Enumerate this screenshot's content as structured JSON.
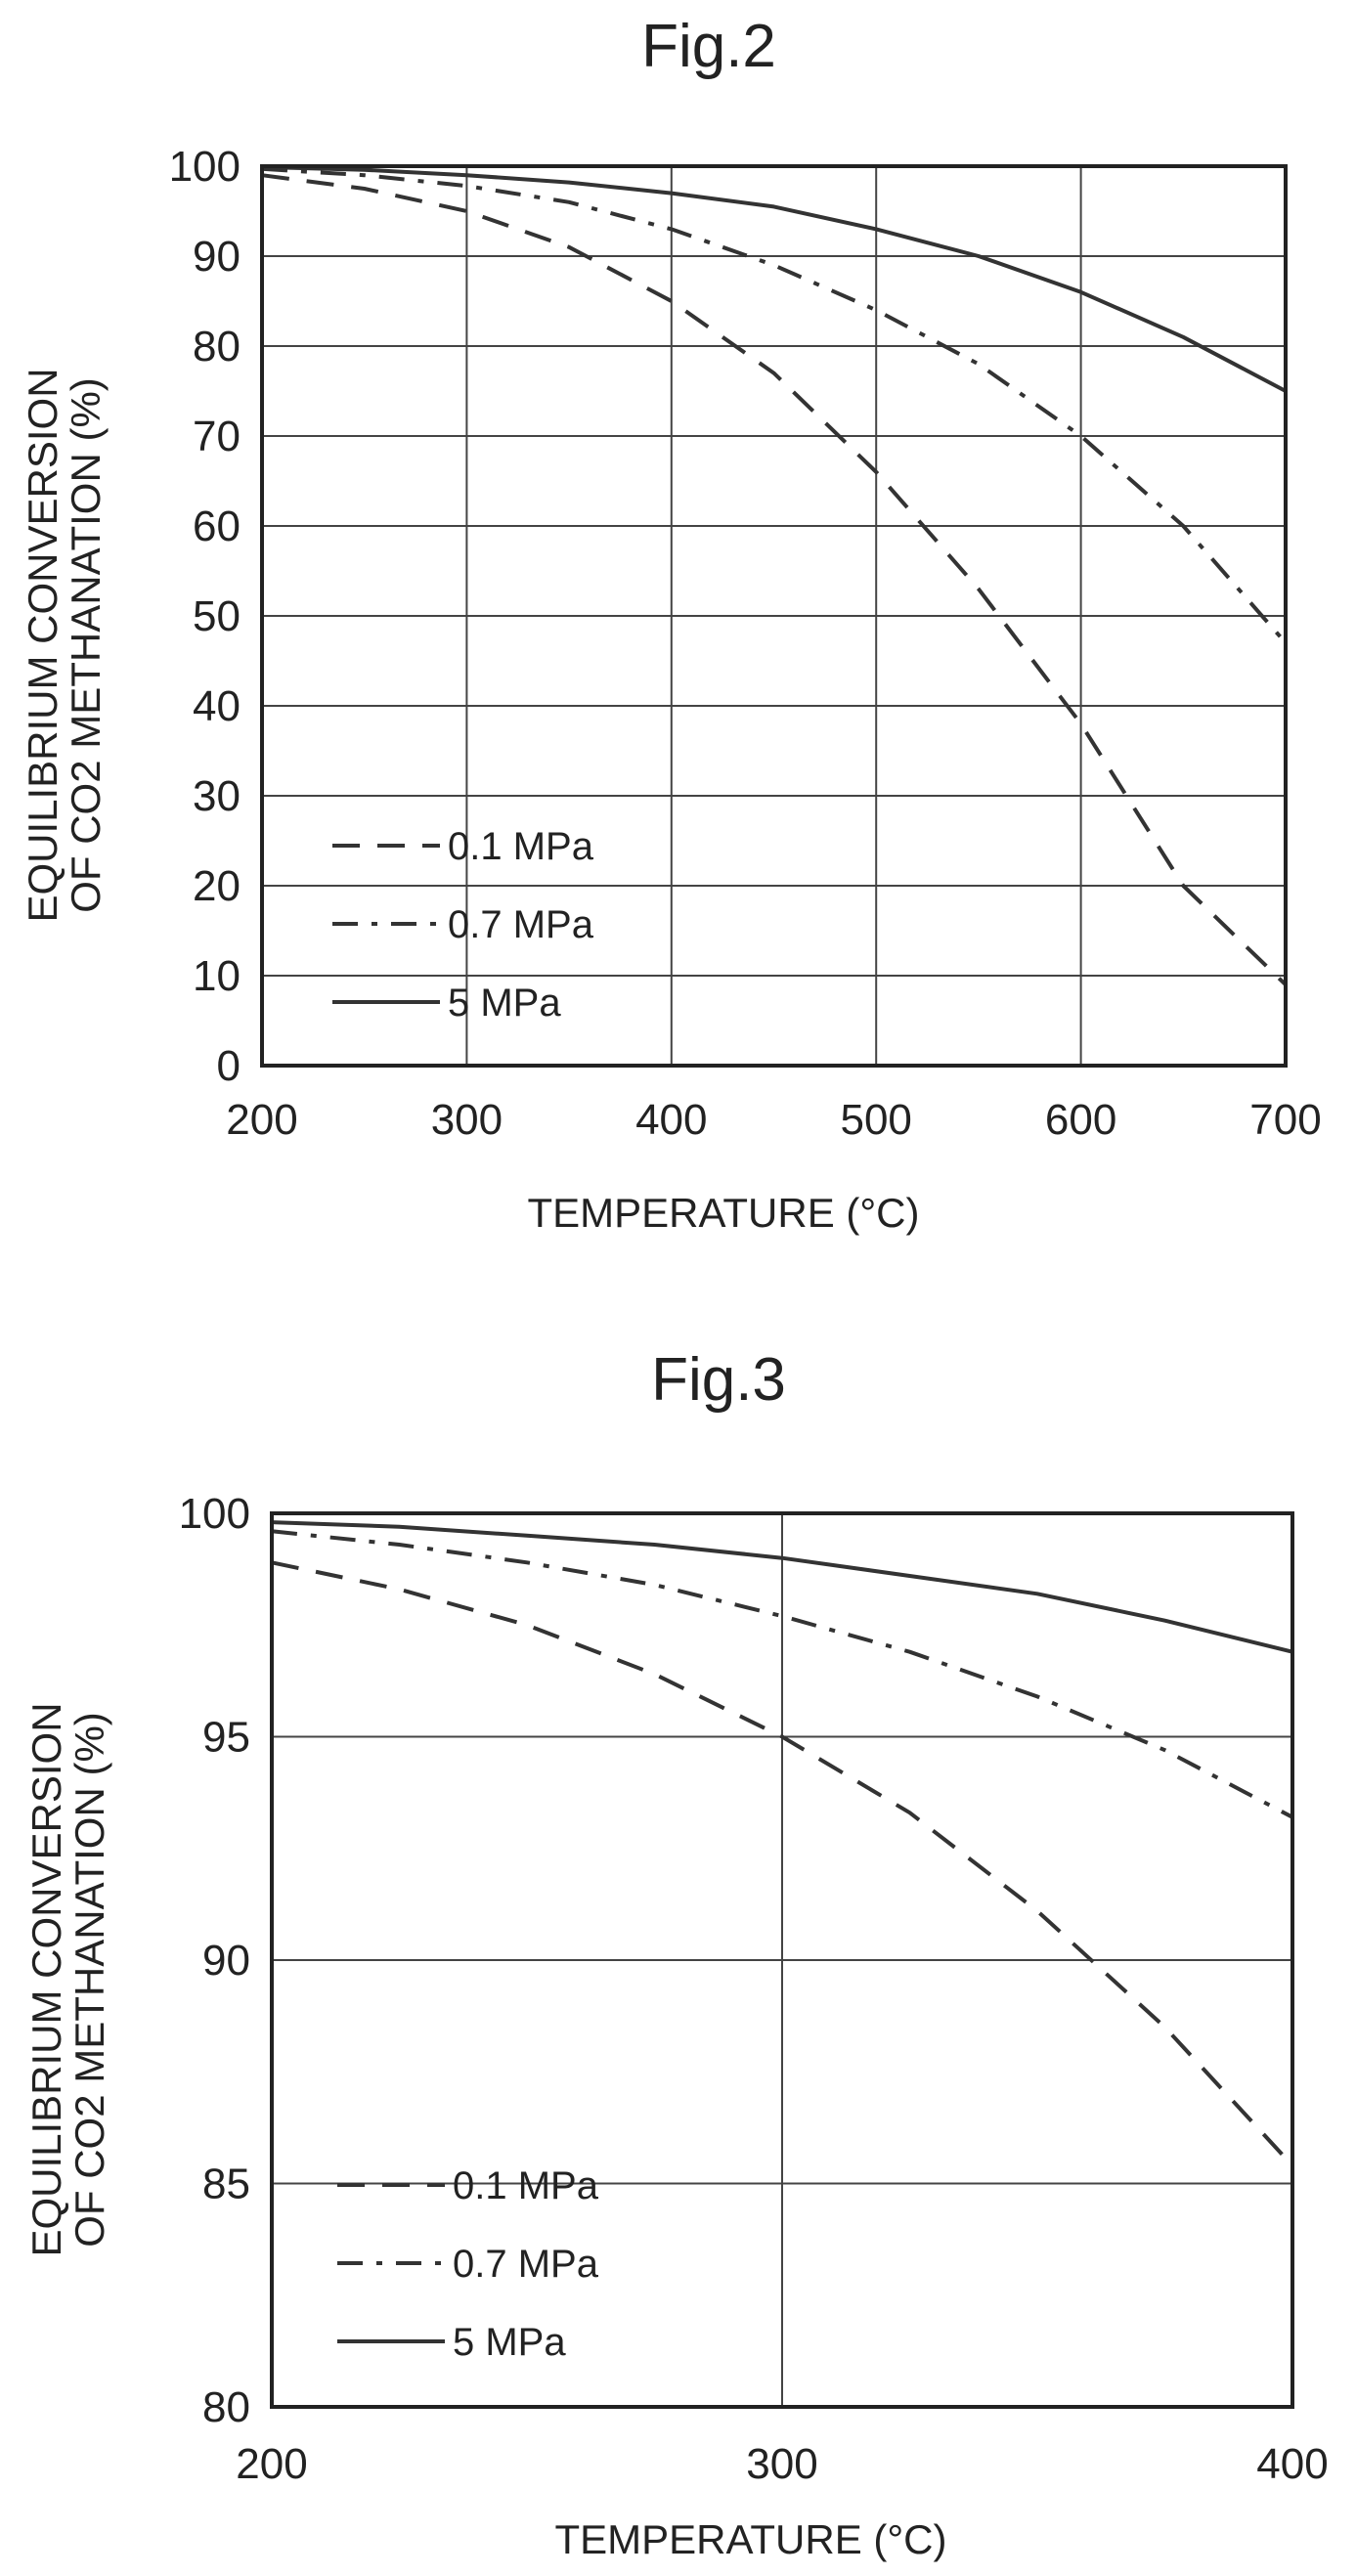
{
  "chart_data": [
    {
      "type": "line",
      "title": "Fig.2",
      "xlabel": "TEMPERATURE (°C)",
      "ylabel_lines": [
        "EQUILIBRIUM CONVERSION",
        "OF CO2 METHANATION (%)"
      ],
      "xlim": [
        200,
        700
      ],
      "ylim": [
        0,
        100
      ],
      "xticks": [
        200,
        300,
        400,
        500,
        600,
        700
      ],
      "yticks": [
        0,
        10,
        20,
        30,
        40,
        50,
        60,
        70,
        80,
        90,
        100
      ],
      "grid": true,
      "legend_position": "bottom-left",
      "series": [
        {
          "name": "0.1 MPa",
          "style": "dashed",
          "x": [
            200,
            250,
            300,
            350,
            400,
            450,
            500,
            550,
            600,
            650,
            700
          ],
          "y": [
            99,
            97.5,
            95,
            91,
            85,
            77,
            66,
            53,
            38,
            20,
            9
          ]
        },
        {
          "name": "0.7 MPa",
          "style": "dashdot",
          "x": [
            200,
            250,
            300,
            350,
            400,
            450,
            500,
            550,
            600,
            650,
            700
          ],
          "y": [
            99.7,
            99,
            97.8,
            96,
            93,
            89,
            84,
            78,
            70,
            60,
            47
          ]
        },
        {
          "name": "5 MPa",
          "style": "solid",
          "x": [
            200,
            250,
            300,
            350,
            400,
            450,
            500,
            550,
            600,
            650,
            700
          ],
          "y": [
            99.9,
            99.6,
            99,
            98.2,
            97,
            95.5,
            93,
            90,
            86,
            81,
            75
          ]
        }
      ]
    },
    {
      "type": "line",
      "title": "Fig.3",
      "xlabel": "TEMPERATURE (°C)",
      "ylabel_lines": [
        "EQUILIBRIUM CONVERSION",
        "OF CO2 METHANATION (%)"
      ],
      "xlim": [
        200,
        400
      ],
      "ylim": [
        80,
        100
      ],
      "xticks": [
        200,
        300,
        400
      ],
      "yticks": [
        80,
        85,
        90,
        95,
        100
      ],
      "grid": true,
      "legend_position": "bottom-left",
      "series": [
        {
          "name": "0.1 MPa",
          "style": "dashed",
          "x": [
            200,
            225,
            250,
            275,
            300,
            325,
            350,
            375,
            400
          ],
          "y": [
            98.9,
            98.3,
            97.5,
            96.4,
            95.0,
            93.3,
            91.1,
            88.5,
            85.4
          ]
        },
        {
          "name": "0.7 MPa",
          "style": "dashdot",
          "x": [
            200,
            225,
            250,
            275,
            300,
            325,
            350,
            375,
            400
          ],
          "y": [
            99.6,
            99.3,
            98.9,
            98.4,
            97.7,
            96.9,
            95.9,
            94.7,
            93.2
          ]
        },
        {
          "name": "5 MPa",
          "style": "solid",
          "x": [
            200,
            225,
            250,
            275,
            300,
            325,
            350,
            375,
            400
          ],
          "y": [
            99.8,
            99.7,
            99.5,
            99.3,
            99.0,
            98.6,
            98.2,
            97.6,
            96.9
          ]
        }
      ]
    }
  ]
}
